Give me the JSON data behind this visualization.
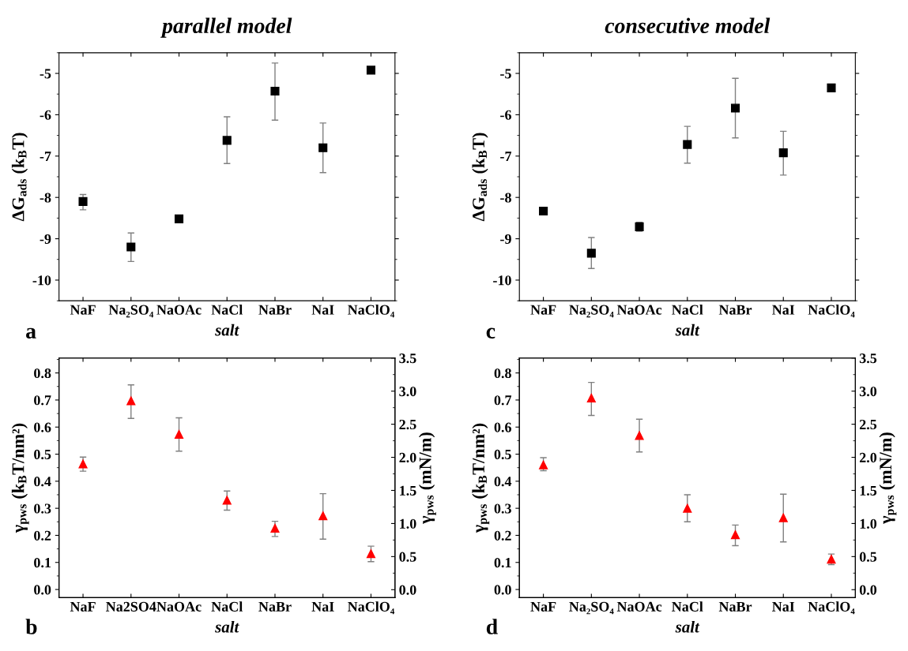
{
  "chart_data": [
    {
      "type": "scatter",
      "title": "parallel model",
      "xlabel": "salt",
      "ylabel": "ΔG$_{ads}$ (k$_{B}$T)",
      "annotations": [
        "a"
      ],
      "categories": [
        "NaF",
        "Na₂SO₄",
        "NaOAc",
        "NaCl",
        "NaBr",
        "NaI",
        "NaClO₄"
      ],
      "marker": "square",
      "color": "#000000",
      "values": [
        -8.1,
        -9.2,
        -8.52,
        -6.62,
        -5.43,
        -6.8,
        -4.92
      ],
      "errors": [
        [
          -8.3,
          -7.93
        ],
        [
          -9.55,
          -8.86
        ],
        [
          -8.57,
          -8.47
        ],
        [
          -7.18,
          -6.05
        ],
        [
          -6.13,
          -4.75
        ],
        [
          -7.4,
          -6.2
        ],
        null
      ],
      "ylim": [
        -10.5,
        -4.5
      ],
      "yticks": [
        -10,
        -9,
        -8,
        -7,
        -6,
        -5
      ],
      "grid": false
    },
    {
      "type": "scatter",
      "title": "consecutive model",
      "xlabel": "salt",
      "ylabel": "ΔG$_{ads}$ (k$_{B}$T)",
      "annotations": [
        "c"
      ],
      "categories": [
        "NaF",
        "Na₂SO₄",
        "NaOAc",
        "NaCl",
        "NaBr",
        "NaI",
        "NaClO₄"
      ],
      "marker": "square",
      "color": "#000000",
      "values": [
        -8.33,
        -9.35,
        -8.71,
        -6.72,
        -5.84,
        -6.92,
        -5.35
      ],
      "errors": [
        null,
        [
          -9.72,
          -8.97
        ],
        [
          -8.82,
          -8.6
        ],
        [
          -7.17,
          -6.28
        ],
        [
          -6.56,
          -5.12
        ],
        [
          -7.46,
          -6.4
        ],
        null
      ],
      "ylim": [
        -10.5,
        -4.5
      ],
      "yticks": [
        -10,
        -9,
        -8,
        -7,
        -6,
        -5
      ],
      "grid": false
    },
    {
      "type": "scatter",
      "xlabel": "salt",
      "ylabel": "γ$_{pws}$ (k$_{B}$T/nm²)",
      "y2label": "γ$_{pws}$ (mN/m)",
      "annotations": [
        "b"
      ],
      "categories": [
        "NaF",
        "Na2SO4",
        "NaOAc",
        "NaCl",
        "NaBr",
        "NaI",
        "NaClO₄"
      ],
      "marker": "triangle",
      "color": "#ff0000",
      "values": [
        0.464,
        0.697,
        0.573,
        0.33,
        0.226,
        0.272,
        0.132
      ],
      "errors": [
        [
          0.437,
          0.489
        ],
        [
          0.632,
          0.756
        ],
        [
          0.511,
          0.634
        ],
        [
          0.293,
          0.364
        ],
        [
          0.196,
          0.252
        ],
        [
          0.186,
          0.354
        ],
        [
          0.103,
          0.16
        ]
      ],
      "ylim": [
        -0.03,
        0.855
      ],
      "yticks": [
        {
          "value": 0,
          "label": "0.0"
        },
        0.1,
        0.2,
        0.3,
        0.4,
        0.5,
        0.6,
        0.7,
        0.8
      ],
      "y2lim": [
        -0.12,
        3.5
      ],
      "y2ticks": [
        {
          "value": 0,
          "label": "0.0"
        },
        0.5,
        {
          "value": 1,
          "label": "1.0"
        },
        1.5,
        {
          "value": 2,
          "label": "2.0"
        },
        2.5,
        {
          "value": 3,
          "label": "3.0"
        },
        3.5
      ],
      "grid": false
    },
    {
      "type": "scatter",
      "xlabel": "salt",
      "ylabel": "γ$_{pws}$ (k$_{B}$T/nm²)",
      "y2label": "γ$_{pws}$ (mN/m)",
      "annotations": [
        "d"
      ],
      "categories": [
        "NaF",
        "Na₂SO₄",
        "NaOAc",
        "NaCl",
        "NaBr",
        "NaI",
        "NaClO₄"
      ],
      "marker": "triangle",
      "color": "#ff0000",
      "values": [
        0.46,
        0.707,
        0.569,
        0.3,
        0.202,
        0.265,
        0.112
      ],
      "errors": [
        [
          0.439,
          0.487
        ],
        [
          0.643,
          0.765
        ],
        [
          0.508,
          0.629
        ],
        [
          0.25,
          0.35
        ],
        [
          0.162,
          0.238
        ],
        [
          0.176,
          0.352
        ],
        [
          0.092,
          0.131
        ]
      ],
      "ylim": [
        -0.03,
        0.855
      ],
      "yticks": [
        {
          "value": 0,
          "label": "0.0"
        },
        0.1,
        0.2,
        0.3,
        0.4,
        0.5,
        0.6,
        0.7,
        0.8
      ],
      "y2lim": [
        -0.12,
        3.5
      ],
      "y2ticks": [
        {
          "value": 0,
          "label": "0.0"
        },
        0.5,
        {
          "value": 1,
          "label": "1.0"
        },
        1.5,
        {
          "value": 2,
          "label": "2.0"
        },
        2.5,
        {
          "value": 3,
          "label": "3.0"
        },
        3.5
      ],
      "grid": false
    }
  ]
}
